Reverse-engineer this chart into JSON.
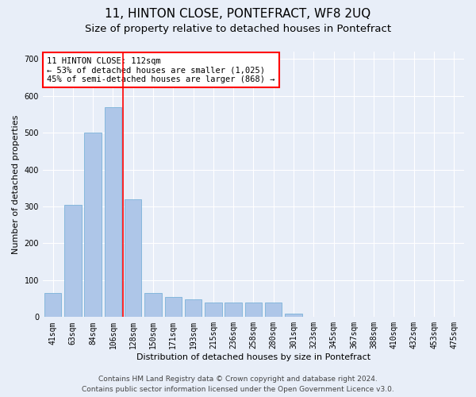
{
  "title": "11, HINTON CLOSE, PONTEFRACT, WF8 2UQ",
  "subtitle": "Size of property relative to detached houses in Pontefract",
  "xlabel": "Distribution of detached houses by size in Pontefract",
  "ylabel": "Number of detached properties",
  "categories": [
    "41sqm",
    "63sqm",
    "84sqm",
    "106sqm",
    "128sqm",
    "150sqm",
    "171sqm",
    "193sqm",
    "215sqm",
    "236sqm",
    "258sqm",
    "280sqm",
    "301sqm",
    "323sqm",
    "345sqm",
    "367sqm",
    "388sqm",
    "410sqm",
    "432sqm",
    "453sqm",
    "475sqm"
  ],
  "values": [
    65,
    305,
    500,
    570,
    320,
    65,
    55,
    48,
    40,
    40,
    40,
    40,
    10,
    0,
    0,
    0,
    0,
    0,
    0,
    0,
    0
  ],
  "bar_color": "#aec6e8",
  "bar_edgecolor": "#6aaad4",
  "redline_x": 3.5,
  "annotation_text": "11 HINTON CLOSE: 112sqm\n← 53% of detached houses are smaller (1,025)\n45% of semi-detached houses are larger (868) →",
  "annotation_box_color": "white",
  "annotation_box_edgecolor": "red",
  "ylim": [
    0,
    720
  ],
  "yticks": [
    0,
    100,
    200,
    300,
    400,
    500,
    600,
    700
  ],
  "footer_line1": "Contains HM Land Registry data © Crown copyright and database right 2024.",
  "footer_line2": "Contains public sector information licensed under the Open Government Licence v3.0.",
  "background_color": "#e8eef8",
  "plot_bg_color": "#e8eef8",
  "grid_color": "white",
  "title_fontsize": 11,
  "subtitle_fontsize": 9.5,
  "axis_label_fontsize": 8,
  "tick_fontsize": 7,
  "footer_fontsize": 6.5,
  "annotation_fontsize": 7.5
}
